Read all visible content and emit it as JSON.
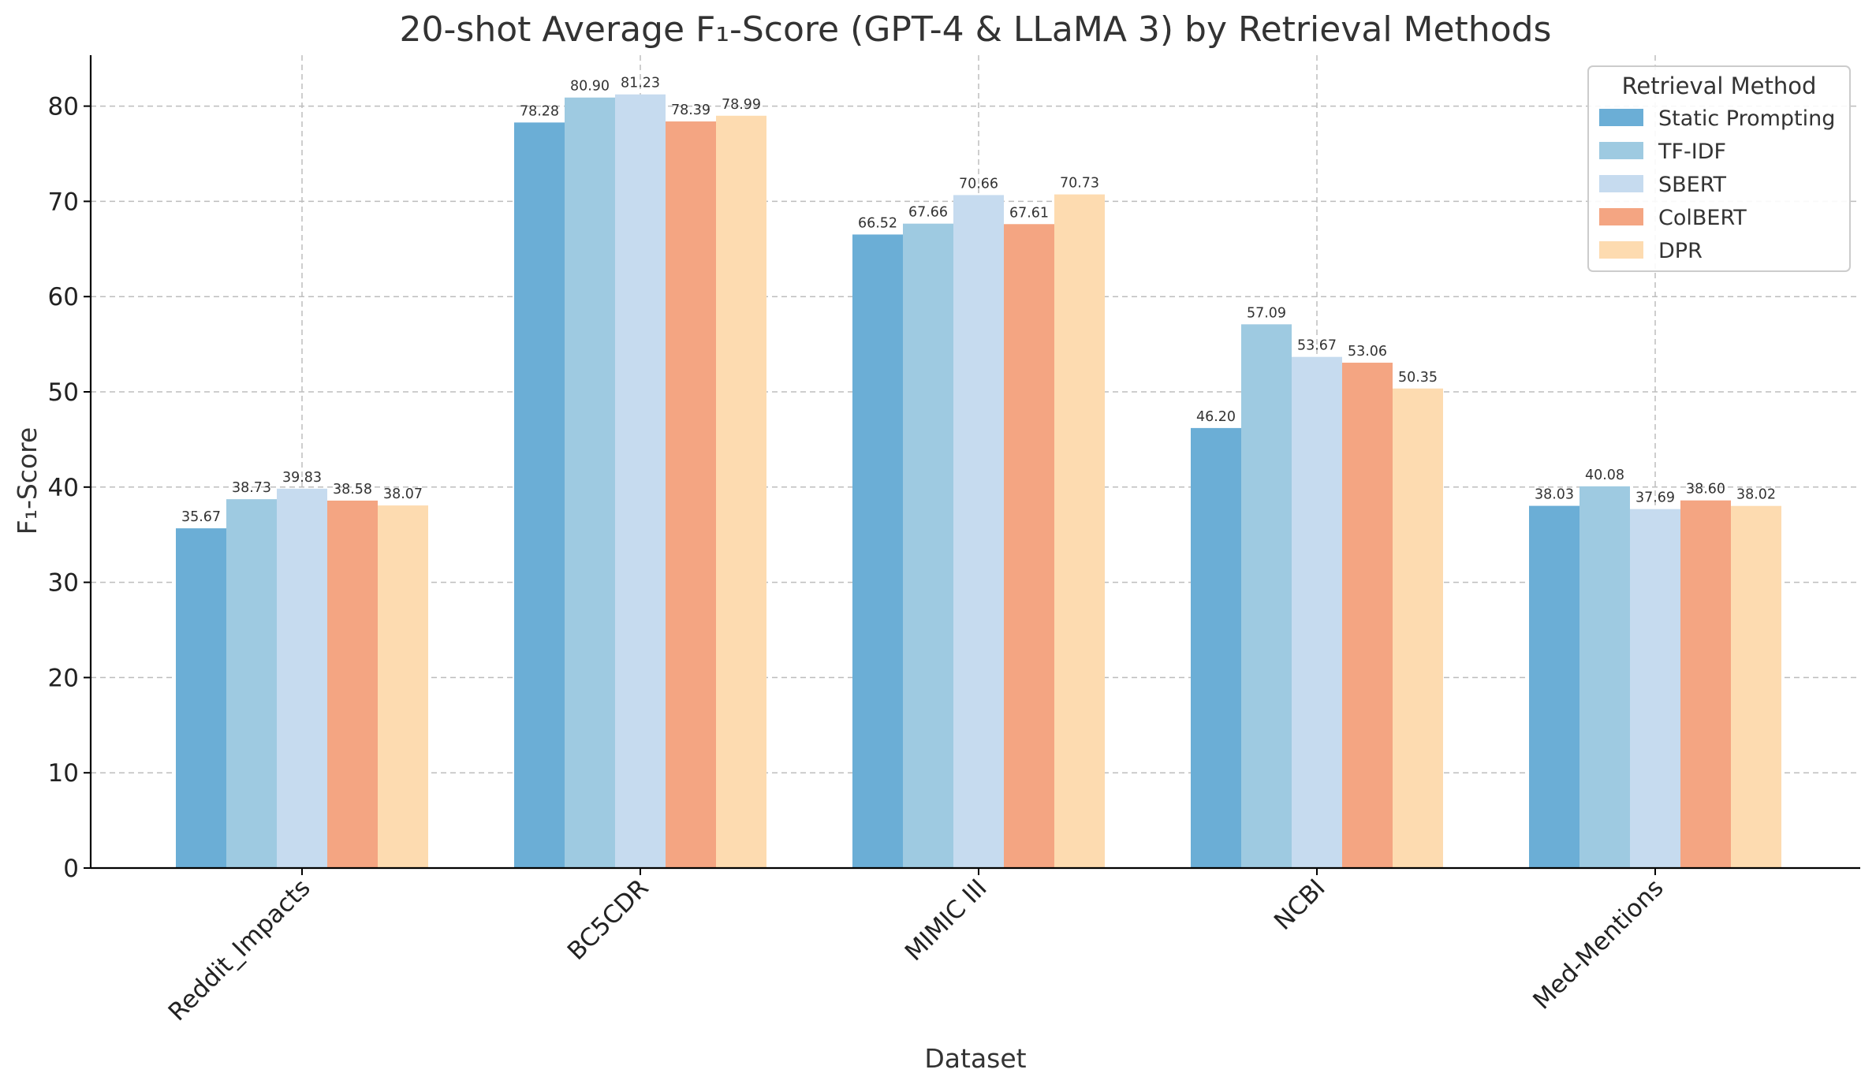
{
  "chart_data": {
    "type": "bar",
    "title": "20-shot Average F₁-Score (GPT-4 & LLaMA 3) by Retrieval Methods",
    "xlabel": "Dataset",
    "ylabel": "F₁-Score",
    "ylim": [
      0,
      85
    ],
    "yticks": [
      0,
      10,
      20,
      30,
      40,
      50,
      60,
      70,
      80
    ],
    "grid": true,
    "legend_title": "Retrieval Method",
    "legend_position": "top-right",
    "categories": [
      "Reddit_Impacts",
      "BC5CDR",
      "MIMIC III",
      "NCBI",
      "Med-Mentions"
    ],
    "series": [
      {
        "name": "Static Prompting",
        "color": "#6baed6",
        "values": [
          35.67,
          78.28,
          66.52,
          46.2,
          38.03
        ],
        "labels": [
          "35.67",
          "78.28",
          "66.52",
          "46.20",
          "38.03"
        ]
      },
      {
        "name": "TF-IDF",
        "color": "#9ecae1",
        "values": [
          38.73,
          80.9,
          67.66,
          57.09,
          40.08
        ],
        "labels": [
          "38.73",
          "80.90",
          "67.66",
          "57.09",
          "40.08"
        ]
      },
      {
        "name": "SBERT",
        "color": "#c6dbef",
        "values": [
          39.83,
          81.23,
          70.66,
          53.67,
          37.69
        ],
        "labels": [
          "39.83",
          "81.23",
          "70.66",
          "53.67",
          "37.69"
        ]
      },
      {
        "name": "ColBERT",
        "color": "#f4a582",
        "values": [
          38.58,
          78.39,
          67.61,
          53.06,
          38.6
        ],
        "labels": [
          "38.58",
          "78.39",
          "67.61",
          "53.06",
          "38.60"
        ]
      },
      {
        "name": "DPR",
        "color": "#fddbb0",
        "values": [
          38.07,
          78.99,
          70.73,
          50.35,
          38.02
        ],
        "labels": [
          "38.07",
          "78.99",
          "70.73",
          "50.35",
          "38.02"
        ]
      }
    ]
  }
}
